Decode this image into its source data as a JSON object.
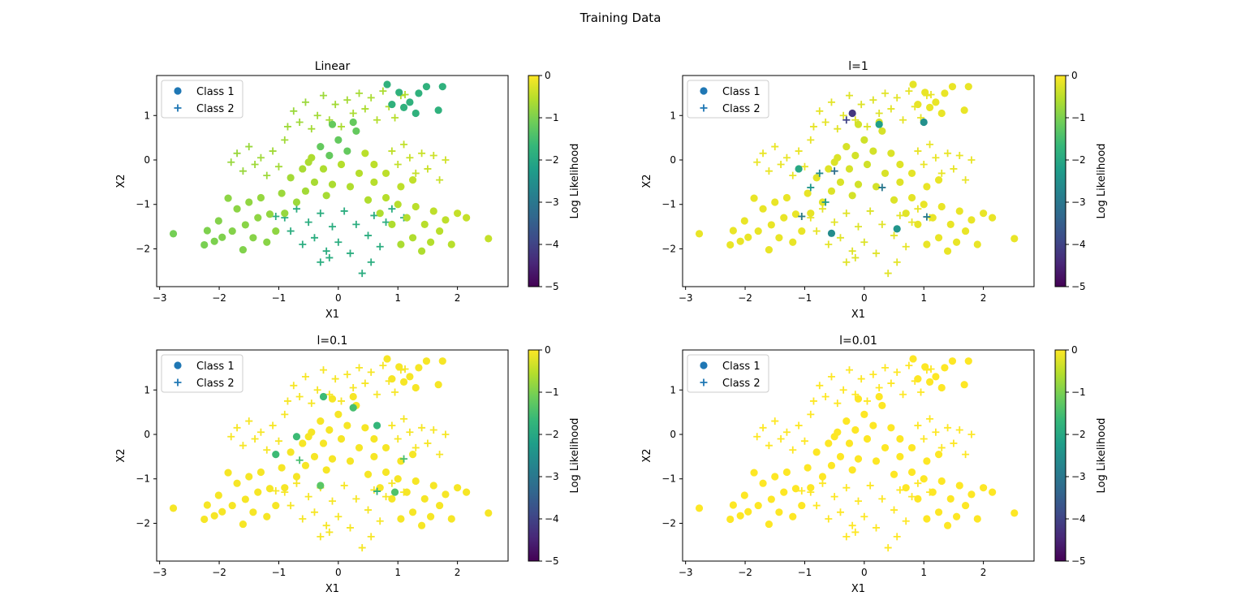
{
  "figure_title": "Training Data",
  "chart_data": {
    "type": "scatter",
    "title": "Training Data",
    "colormap": "viridis",
    "colors": {
      "class1_legend": "#1f77b4",
      "class2_legend": "#1f77b4"
    },
    "shared_points": {
      "class1": [
        [
          -2.77,
          -1.66
        ],
        [
          -2.25,
          -1.91
        ],
        [
          -2.2,
          -1.59
        ],
        [
          -2.08,
          -1.83
        ],
        [
          -2.01,
          -1.37
        ],
        [
          -1.95,
          -1.74
        ],
        [
          -1.85,
          -0.86
        ],
        [
          -1.78,
          -1.6
        ],
        [
          -1.7,
          -1.1
        ],
        [
          -1.6,
          -2.02
        ],
        [
          -1.56,
          -1.46
        ],
        [
          -1.5,
          -0.95
        ],
        [
          -1.43,
          -1.75
        ],
        [
          -1.35,
          -1.3
        ],
        [
          -1.3,
          -0.85
        ],
        [
          -1.2,
          -1.85
        ],
        [
          -1.15,
          -1.22
        ],
        [
          -1.05,
          -1.6
        ],
        [
          -0.95,
          -0.75
        ],
        [
          -0.9,
          -1.2
        ],
        [
          -0.8,
          -0.4
        ],
        [
          -0.7,
          -0.95
        ],
        [
          -0.6,
          -0.2
        ],
        [
          -0.55,
          -0.7
        ],
        [
          -0.45,
          0.05
        ],
        [
          -0.4,
          -0.5
        ],
        [
          -0.3,
          0.3
        ],
        [
          -0.25,
          -0.2
        ],
        [
          -0.15,
          0.1
        ],
        [
          -0.1,
          -0.55
        ],
        [
          0.0,
          0.45
        ],
        [
          0.05,
          -0.1
        ],
        [
          0.15,
          0.2
        ],
        [
          0.2,
          -0.6
        ],
        [
          0.3,
          0.65
        ],
        [
          0.35,
          -0.3
        ],
        [
          0.45,
          0.15
        ],
        [
          0.5,
          -0.9
        ],
        [
          0.6,
          -0.5
        ],
        [
          0.7,
          -1.2
        ],
        [
          0.8,
          -0.85
        ],
        [
          0.9,
          -1.45
        ],
        [
          1.0,
          -1.0
        ],
        [
          1.05,
          -1.9
        ],
        [
          1.15,
          -1.3
        ],
        [
          1.25,
          -1.75
        ],
        [
          1.3,
          -1.05
        ],
        [
          1.4,
          -2.05
        ],
        [
          1.45,
          -1.45
        ],
        [
          1.55,
          -1.85
        ],
        [
          1.6,
          -1.15
        ],
        [
          1.7,
          -1.6
        ],
        [
          1.8,
          -1.35
        ],
        [
          1.9,
          -1.9
        ],
        [
          2.0,
          -1.2
        ],
        [
          2.15,
          -1.3
        ],
        [
          2.52,
          -1.77
        ],
        [
          0.82,
          1.7
        ],
        [
          1.02,
          1.52
        ],
        [
          1.2,
          1.3
        ],
        [
          1.35,
          1.5
        ],
        [
          1.48,
          1.65
        ],
        [
          1.68,
          1.12
        ],
        [
          1.75,
          1.65
        ],
        [
          1.1,
          1.18
        ],
        [
          1.3,
          1.05
        ],
        [
          -0.1,
          0.8
        ],
        [
          0.25,
          0.85
        ],
        [
          0.9,
          1.25
        ],
        [
          0.6,
          -0.1
        ],
        [
          0.8,
          -0.3
        ],
        [
          1.05,
          -0.6
        ],
        [
          1.25,
          -0.45
        ],
        [
          -0.5,
          -0.05
        ],
        [
          -0.2,
          -0.8
        ]
      ],
      "class2": [
        [
          -1.8,
          -0.05
        ],
        [
          -1.7,
          0.15
        ],
        [
          -1.6,
          -0.25
        ],
        [
          -1.5,
          0.3
        ],
        [
          -1.4,
          -0.1
        ],
        [
          -1.3,
          0.05
        ],
        [
          -1.2,
          -0.35
        ],
        [
          -1.1,
          0.2
        ],
        [
          -1.0,
          -0.15
        ],
        [
          -0.9,
          0.45
        ],
        [
          -0.85,
          0.75
        ],
        [
          -0.75,
          1.1
        ],
        [
          -0.65,
          0.85
        ],
        [
          -0.55,
          1.3
        ],
        [
          -0.45,
          0.7
        ],
        [
          -0.35,
          1.0
        ],
        [
          -0.25,
          1.45
        ],
        [
          -0.15,
          0.9
        ],
        [
          -0.05,
          1.25
        ],
        [
          0.05,
          0.75
        ],
        [
          0.15,
          1.35
        ],
        [
          0.25,
          1.05
        ],
        [
          0.35,
          1.5
        ],
        [
          0.45,
          1.15
        ],
        [
          0.55,
          1.4
        ],
        [
          0.65,
          0.9
        ],
        [
          0.75,
          1.55
        ],
        [
          0.85,
          1.2
        ],
        [
          0.95,
          0.95
        ],
        [
          1.05,
          1.45
        ],
        [
          0.9,
          0.2
        ],
        [
          1.0,
          -0.1
        ],
        [
          1.1,
          0.35
        ],
        [
          1.2,
          0.05
        ],
        [
          1.3,
          -0.3
        ],
        [
          1.4,
          0.15
        ],
        [
          1.5,
          -0.2
        ],
        [
          1.6,
          0.1
        ],
        [
          1.7,
          -0.45
        ],
        [
          1.8,
          0.0
        ],
        [
          -0.9,
          -1.3
        ],
        [
          -0.8,
          -1.6
        ],
        [
          -0.7,
          -1.1
        ],
        [
          -0.6,
          -1.9
        ],
        [
          -0.5,
          -1.4
        ],
        [
          -0.4,
          -1.75
        ],
        [
          -0.3,
          -1.2
        ],
        [
          -0.2,
          -2.05
        ],
        [
          -0.1,
          -1.5
        ],
        [
          0.0,
          -1.85
        ],
        [
          0.1,
          -1.15
        ],
        [
          0.2,
          -2.1
        ],
        [
          0.3,
          -1.45
        ],
        [
          0.4,
          -2.55
        ],
        [
          0.5,
          -1.7
        ],
        [
          0.6,
          -1.25
        ],
        [
          0.7,
          -1.95
        ],
        [
          0.8,
          -1.4
        ],
        [
          0.9,
          -1.1
        ],
        [
          -0.3,
          -2.3
        ],
        [
          -0.15,
          -2.2
        ],
        [
          0.55,
          -2.3
        ],
        [
          1.12,
          1.47
        ],
        [
          1.1,
          -1.3
        ],
        [
          -1.05,
          -1.27
        ]
      ]
    },
    "panels": [
      {
        "title": "Linear",
        "xlabel": "X1",
        "ylabel": "X2",
        "xlim": [
          -3.05,
          2.85
        ],
        "ylim": [
          -2.85,
          1.9
        ],
        "x_ticks": [
          "-3",
          "-2",
          "-1",
          "0",
          "1",
          "2"
        ],
        "y_ticks": [
          "-2",
          "-1",
          "0",
          "1"
        ],
        "legend": [
          "Class 1",
          "Class 2"
        ],
        "legend_loc": "upper left",
        "colorbar": {
          "label": "Log Likelihood",
          "range": [
            -5,
            0
          ],
          "ticks": [
            "0",
            "-1",
            "-2",
            "-3",
            "-4",
            "-5"
          ]
        },
        "llh_model": "linear"
      },
      {
        "title": "l=1",
        "xlabel": "X1",
        "ylabel": "X2",
        "xlim": [
          -3.05,
          2.85
        ],
        "ylim": [
          -2.85,
          1.9
        ],
        "x_ticks": [
          "-3",
          "-2",
          "-1",
          "0",
          "1",
          "2"
        ],
        "y_ticks": [
          "-2",
          "-1",
          "0",
          "1"
        ],
        "legend": [
          "Class 1",
          "Class 2"
        ],
        "legend_loc": "upper left",
        "colorbar": {
          "label": "Log Likelihood",
          "range": [
            -5,
            0
          ],
          "ticks": [
            "0",
            "-1",
            "-2",
            "-3",
            "-4",
            "-5"
          ]
        },
        "llh_model": "rbf-wide",
        "outliers": [
          [
            -0.2,
            1.05,
            -4.2,
            "class1"
          ],
          [
            -0.3,
            0.9,
            -4.0,
            "class2"
          ],
          [
            1.0,
            0.85,
            -2.5,
            "class1"
          ],
          [
            0.25,
            0.8,
            -2.2,
            "class1"
          ],
          [
            -0.55,
            -1.65,
            -2.6,
            "class1"
          ],
          [
            0.55,
            -1.55,
            -2.4,
            "class1"
          ],
          [
            -1.05,
            -1.27,
            -3.0,
            "class2"
          ],
          [
            -0.5,
            -0.25,
            -3.2,
            "class2"
          ],
          [
            0.3,
            -0.62,
            -3.0,
            "class2"
          ],
          [
            1.05,
            -1.28,
            -2.9,
            "class2"
          ],
          [
            -1.1,
            -0.2,
            -2.0,
            "class1"
          ],
          [
            -0.75,
            -0.3,
            -2.6,
            "class2"
          ],
          [
            -0.9,
            -0.62,
            -2.4,
            "class2"
          ],
          [
            -0.65,
            -0.95,
            -2.3,
            "class2"
          ]
        ]
      },
      {
        "title": "l=0.1",
        "xlabel": "X1",
        "ylabel": "X2",
        "xlim": [
          -3.05,
          2.85
        ],
        "ylim": [
          -2.85,
          1.9
        ],
        "x_ticks": [
          "-3",
          "-2",
          "-1",
          "0",
          "1",
          "2"
        ],
        "y_ticks": [
          "-2",
          "-1",
          "0",
          "1"
        ],
        "legend": [
          "Class 1",
          "Class 2"
        ],
        "legend_loc": "upper left",
        "colorbar": {
          "label": "Log Likelihood",
          "range": [
            -5,
            0
          ],
          "ticks": [
            "0",
            "-1",
            "-2",
            "-3",
            "-4",
            "-5"
          ]
        },
        "llh_model": "rbf-narrow",
        "outliers": [
          [
            -0.25,
            0.85,
            -1.6,
            "class1"
          ],
          [
            0.25,
            0.6,
            -1.5,
            "class1"
          ],
          [
            0.65,
            0.2,
            -1.7,
            "class1"
          ],
          [
            -0.7,
            -0.05,
            -1.6,
            "class1"
          ],
          [
            -1.05,
            -0.45,
            -1.6,
            "class1"
          ],
          [
            0.65,
            -1.28,
            -1.8,
            "class2"
          ],
          [
            1.1,
            -0.55,
            -1.5,
            "class2"
          ],
          [
            -0.65,
            -0.58,
            -1.5,
            "class2"
          ],
          [
            0.95,
            -1.3,
            -1.4,
            "class1"
          ],
          [
            -0.3,
            -1.15,
            -1.3,
            "class1"
          ]
        ]
      },
      {
        "title": "l=0.01",
        "xlabel": "X1",
        "ylabel": "X2",
        "xlim": [
          -3.05,
          2.85
        ],
        "ylim": [
          -2.85,
          1.9
        ],
        "x_ticks": [
          "-3",
          "-2",
          "-1",
          "0",
          "1",
          "2"
        ],
        "y_ticks": [
          "-2",
          "-1",
          "0",
          "1"
        ],
        "legend": [
          "Class 1",
          "Class 2"
        ],
        "legend_loc": "upper left",
        "colorbar": {
          "label": "Log Likelihood",
          "range": [
            -5,
            0
          ],
          "ticks": [
            "0",
            "-1",
            "-2",
            "-3",
            "-4",
            "-5"
          ]
        },
        "llh_model": "perfect"
      }
    ]
  }
}
